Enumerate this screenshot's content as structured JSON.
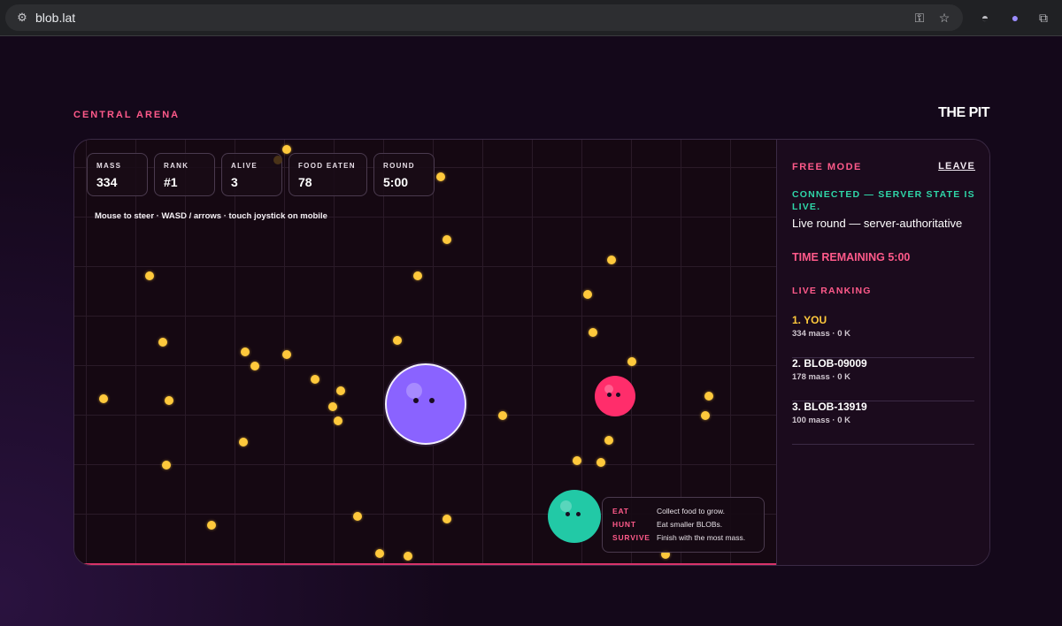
{
  "browser": {
    "url": "blob.lat",
    "icons": [
      "site-info-icon",
      "key-icon",
      "star-icon",
      "incognito-icon",
      "ghost-extension-icon",
      "puzzle-extension-icon"
    ]
  },
  "header": {
    "arena_label": "CENTRAL ARENA",
    "brand": "THE PIT"
  },
  "stats": [
    {
      "label": "MASS",
      "value": "334"
    },
    {
      "label": "RANK",
      "value": "#1"
    },
    {
      "label": "ALIVE",
      "value": "3"
    },
    {
      "label": "FOOD EATEN",
      "value": "78"
    },
    {
      "label": "ROUND",
      "value": "5:00"
    }
  ],
  "hint": "Mouse to steer · WASD / arrows · touch joystick on mobile",
  "legend": [
    {
      "key": "EAT",
      "desc": "Collect food to grow."
    },
    {
      "key": "HUNT",
      "desc": "Eat smaller BLOBs."
    },
    {
      "key": "SURVIVE",
      "desc": "Finish with the most mass."
    }
  ],
  "sidebar": {
    "mode": "FREE MODE",
    "leave": "LEAVE",
    "connected": "CONNECTED — SERVER STATE IS LIVE.",
    "round_info": "Live round — server-authoritative",
    "time_remaining": "TIME REMAINING 5:00",
    "ranking_title": "LIVE RANKING",
    "ranking": [
      {
        "name": "1. YOU",
        "detail": "334 mass · 0 K"
      },
      {
        "name": "2. BLOB-09009",
        "detail": "178 mass · 0 K"
      },
      {
        "name": "3. BLOB-13919",
        "detail": "100 mass · 0 K"
      }
    ]
  },
  "colors": {
    "accent_pink": "#ff5a8a",
    "connected_green": "#2fd6a8",
    "food_yellow": "#ffc93c",
    "player_purple": "#8a63ff",
    "enemy_pink": "#ff2d6b",
    "enemy_teal": "#22c9a6"
  }
}
